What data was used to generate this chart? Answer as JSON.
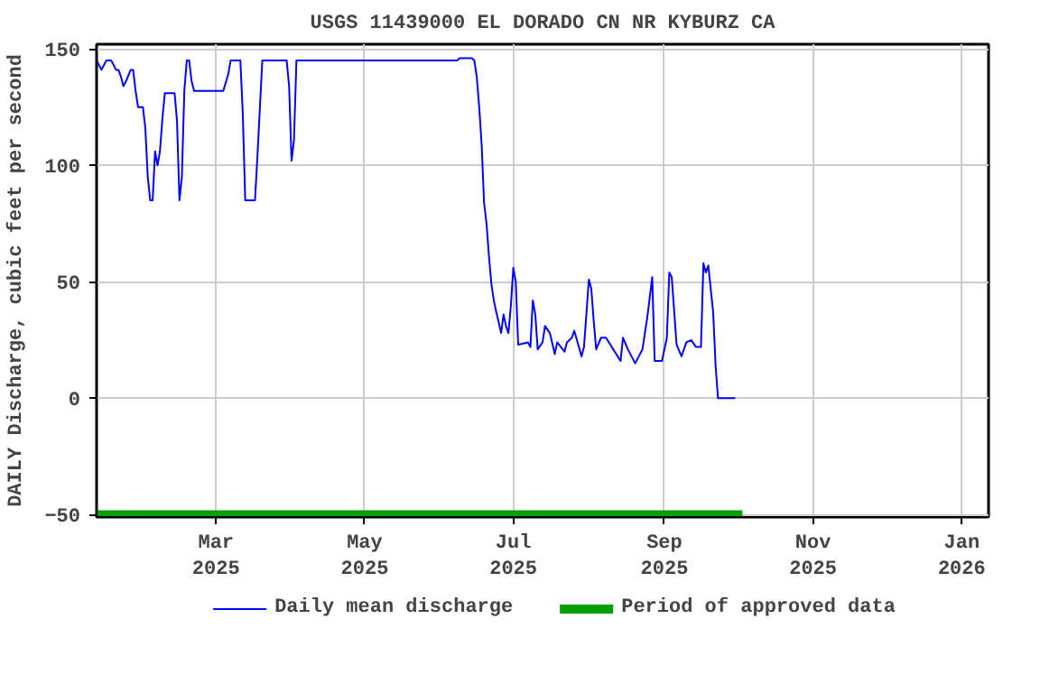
{
  "chart_data": {
    "type": "line",
    "title": "USGS 11439000 EL DORADO CN NR KYBURZ CA",
    "ylabel": "DAILY Discharge, cubic feet per second",
    "xlim": [
      "2025-01-11",
      "2026-01-12"
    ],
    "ylim": [
      -51,
      152
    ],
    "xticks": [
      {
        "value": "2025-03-01",
        "label": "Mar\n2025"
      },
      {
        "value": "2025-05-01",
        "label": "May\n2025"
      },
      {
        "value": "2025-07-01",
        "label": "Jul\n2025"
      },
      {
        "value": "2025-09-01",
        "label": "Sep\n2025"
      },
      {
        "value": "2025-11-01",
        "label": "Nov\n2025"
      },
      {
        "value": "2026-01-01",
        "label": "Jan\n2026"
      }
    ],
    "yticks": [
      -50,
      0,
      50,
      100,
      150
    ],
    "grid": true,
    "legend": "bottom",
    "series": [
      {
        "name": "Daily mean discharge",
        "color": "#0000ff",
        "x": [
          "2025-01-11",
          "2025-01-13",
          "2025-01-15",
          "2025-01-17",
          "2025-01-19",
          "2025-01-20",
          "2025-01-21",
          "2025-01-22",
          "2025-01-23",
          "2025-01-25",
          "2025-01-26",
          "2025-01-27",
          "2025-01-28",
          "2025-01-30",
          "2025-01-31",
          "2025-02-01",
          "2025-02-02",
          "2025-02-03",
          "2025-02-04",
          "2025-02-05",
          "2025-02-06",
          "2025-02-07",
          "2025-02-08",
          "2025-02-12",
          "2025-02-13",
          "2025-02-14",
          "2025-02-15",
          "2025-02-16",
          "2025-02-17",
          "2025-02-18",
          "2025-02-19",
          "2025-02-20",
          "2025-03-04",
          "2025-03-06",
          "2025-03-07",
          "2025-03-11",
          "2025-03-12",
          "2025-03-13",
          "2025-03-17",
          "2025-03-18",
          "2025-03-20",
          "2025-03-30",
          "2025-03-31",
          "2025-04-01",
          "2025-04-02",
          "2025-04-03",
          "2025-06-08",
          "2025-06-09",
          "2025-06-14",
          "2025-06-15",
          "2025-06-16",
          "2025-06-17",
          "2025-06-18",
          "2025-06-19",
          "2025-06-20",
          "2025-06-21",
          "2025-06-22",
          "2025-06-23",
          "2025-06-24",
          "2025-06-26",
          "2025-06-27",
          "2025-06-28",
          "2025-06-29",
          "2025-06-30",
          "2025-07-01",
          "2025-07-02",
          "2025-07-03",
          "2025-07-07",
          "2025-07-08",
          "2025-07-09",
          "2025-07-10",
          "2025-07-11",
          "2025-07-13",
          "2025-07-14",
          "2025-07-16",
          "2025-07-18",
          "2025-07-19",
          "2025-07-22",
          "2025-07-23",
          "2025-07-25",
          "2025-07-26",
          "2025-07-29",
          "2025-07-30",
          "2025-08-01",
          "2025-08-02",
          "2025-08-03",
          "2025-08-04",
          "2025-08-06",
          "2025-08-08",
          "2025-08-11",
          "2025-08-14",
          "2025-08-15",
          "2025-08-17",
          "2025-08-20",
          "2025-08-23",
          "2025-08-25",
          "2025-08-27",
          "2025-08-28",
          "2025-08-31",
          "2025-09-02",
          "2025-09-03",
          "2025-09-04",
          "2025-09-06",
          "2025-09-08",
          "2025-09-10",
          "2025-09-12",
          "2025-09-14",
          "2025-09-16",
          "2025-09-17",
          "2025-09-18",
          "2025-09-19",
          "2025-09-21",
          "2025-09-22",
          "2025-09-23",
          "2025-09-30"
        ],
        "values": [
          145,
          141,
          145,
          145,
          141,
          141,
          138,
          134,
          136,
          141,
          141,
          132,
          125,
          125,
          116,
          95,
          85,
          85,
          106,
          100,
          106,
          120,
          131,
          131,
          119,
          85,
          95,
          132,
          145,
          145,
          136,
          132,
          132,
          139,
          145,
          145,
          122,
          85,
          85,
          104,
          145,
          145,
          134,
          102,
          111,
          145,
          145,
          146,
          146,
          145,
          138,
          125,
          109,
          84,
          75,
          61,
          49,
          42,
          37,
          28,
          36,
          31,
          28,
          40,
          56,
          50,
          23,
          24,
          22,
          42,
          36,
          21,
          24,
          31,
          28,
          19,
          24,
          20,
          24,
          26,
          29,
          18,
          22,
          51,
          47,
          33,
          21,
          26,
          26,
          21,
          16,
          26,
          21,
          15,
          21,
          35,
          52,
          16,
          16,
          26,
          54,
          52,
          23,
          18,
          24,
          25,
          22,
          22,
          58,
          54,
          57,
          37,
          14,
          0,
          0
        ]
      },
      {
        "name": "Period of approved data",
        "color": "#00a000",
        "x": [
          "2025-01-11",
          "2025-10-03"
        ],
        "values": [
          -50,
          -50
        ]
      }
    ]
  }
}
